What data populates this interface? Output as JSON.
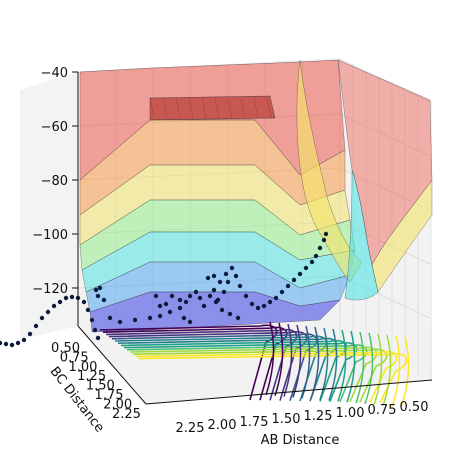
{
  "chart_data": {
    "type": "surface-3d",
    "title": "",
    "xlabel": "AB Distance",
    "ylabel": "BC Distance",
    "zlabel": "",
    "xlim": [
      0.5,
      2.25
    ],
    "ylim": [
      0.5,
      2.25
    ],
    "zlim": [
      -135,
      -40
    ],
    "x_ticks": [
      "2.25",
      "2.00",
      "1.75",
      "1.50",
      "1.25",
      "1.00",
      "0.75",
      "0.50"
    ],
    "y_ticks": [
      "0.50",
      "0.75",
      "1.00",
      "1.25",
      "1.50",
      "1.75",
      "2.00",
      "2.25"
    ],
    "z_ticks": [
      "−40",
      "−60",
      "−80",
      "−100",
      "−120"
    ],
    "colormap_surface": "jet",
    "colormap_contour": "viridis",
    "grid": true,
    "series": [
      {
        "type": "surface",
        "description_levels": [
          -130,
          -120,
          -110,
          -100,
          -90,
          -80,
          -70,
          -60,
          -50,
          -40
        ]
      },
      {
        "type": "contour",
        "offset_z": -135,
        "levels": 14
      },
      {
        "type": "scatter-trajectory",
        "color": "#0b1b3a"
      }
    ]
  }
}
